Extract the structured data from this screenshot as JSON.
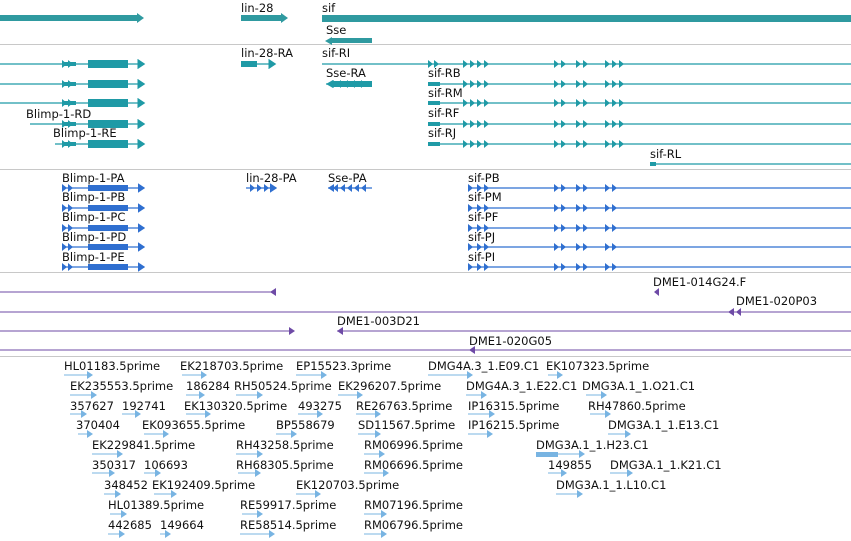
{
  "colors": {
    "gene": "#2f9aa0",
    "transcript": "#1f9aa6",
    "cds": "#2f6fd0",
    "clone": "#6e4aa6",
    "est": "#78b4e2",
    "divider": "#c8c8c8"
  },
  "genes": [
    {
      "label": ""
    },
    {
      "label": "lin-28"
    },
    {
      "label": "sif"
    },
    {
      "label": "Sse"
    }
  ],
  "transcripts": [
    {
      "label": ""
    },
    {
      "label": ""
    },
    {
      "label": ""
    },
    {
      "label": "Blimp-1-RD"
    },
    {
      "label": "Blimp-1-RE"
    },
    {
      "label": "lin-28-RA"
    },
    {
      "label": "Sse-RA"
    },
    {
      "label": "sif-RI"
    },
    {
      "label": "sif-RB"
    },
    {
      "label": "sif-RM"
    },
    {
      "label": "sif-RF"
    },
    {
      "label": "sif-RJ"
    },
    {
      "label": "sif-RL"
    }
  ],
  "cds": [
    {
      "label": "Blimp-1-PA"
    },
    {
      "label": "Blimp-1-PB"
    },
    {
      "label": "Blimp-1-PC"
    },
    {
      "label": "Blimp-1-PD"
    },
    {
      "label": "Blimp-1-PE"
    },
    {
      "label": "lin-28-PA"
    },
    {
      "label": "Sse-PA"
    },
    {
      "label": "sif-PB"
    },
    {
      "label": "sif-PM"
    },
    {
      "label": "sif-PF"
    },
    {
      "label": "sif-PJ"
    },
    {
      "label": "sif-PI"
    }
  ],
  "clones": [
    {
      "label": ""
    },
    {
      "label": "DME1-014G24.F"
    },
    {
      "label": "DME1-020P03"
    },
    {
      "label": "DME1-003D21"
    },
    {
      "label": "DME1-020G05"
    }
  ],
  "ests": [
    {
      "label": "HL01183.5prime"
    },
    {
      "label": "EK218703.5prime"
    },
    {
      "label": "EP15523.3prime"
    },
    {
      "label": "DMG4A.3_1.E09.C1"
    },
    {
      "label": "EK107323.5prime"
    },
    {
      "label": "EK235553.5prime"
    },
    {
      "label": "186284"
    },
    {
      "label": "RH50524.5prime"
    },
    {
      "label": "EK296207.5prime"
    },
    {
      "label": "DMG4A.3_1.E22.C1"
    },
    {
      "label": "DMG3A.1_1.O21.C1"
    },
    {
      "label": "357627"
    },
    {
      "label": "192741"
    },
    {
      "label": "EK130320.5prime"
    },
    {
      "label": "493275"
    },
    {
      "label": "RE26763.5prime"
    },
    {
      "label": "IP16315.5prime"
    },
    {
      "label": "RH47860.5prime"
    },
    {
      "label": "370404"
    },
    {
      "label": "EK093655.5prime"
    },
    {
      "label": "BP558679"
    },
    {
      "label": "SD11567.5prime"
    },
    {
      "label": "IP16215.5prime"
    },
    {
      "label": "DMG3A.1_1.E13.C1"
    },
    {
      "label": "EK229841.5prime"
    },
    {
      "label": "RH43258.5prime"
    },
    {
      "label": "RM06996.5prime"
    },
    {
      "label": "DMG3A.1_1.H23.C1"
    },
    {
      "label": "350317"
    },
    {
      "label": "106693"
    },
    {
      "label": "RH68305.5prime"
    },
    {
      "label": "RM06696.5prime"
    },
    {
      "label": "149855"
    },
    {
      "label": "DMG3A.1_1.K21.C1"
    },
    {
      "label": "348452"
    },
    {
      "label": "EK192409.5prime"
    },
    {
      "label": "EK120703.5prime"
    },
    {
      "label": "DMG3A.1_1.L10.C1"
    },
    {
      "label": "HL01389.5prime"
    },
    {
      "label": "RE59917.5prime"
    },
    {
      "label": "RM07196.5prime"
    },
    {
      "label": "442685"
    },
    {
      "label": "149664"
    },
    {
      "label": "RE58514.5prime"
    },
    {
      "label": "RM06796.5prime"
    }
  ]
}
